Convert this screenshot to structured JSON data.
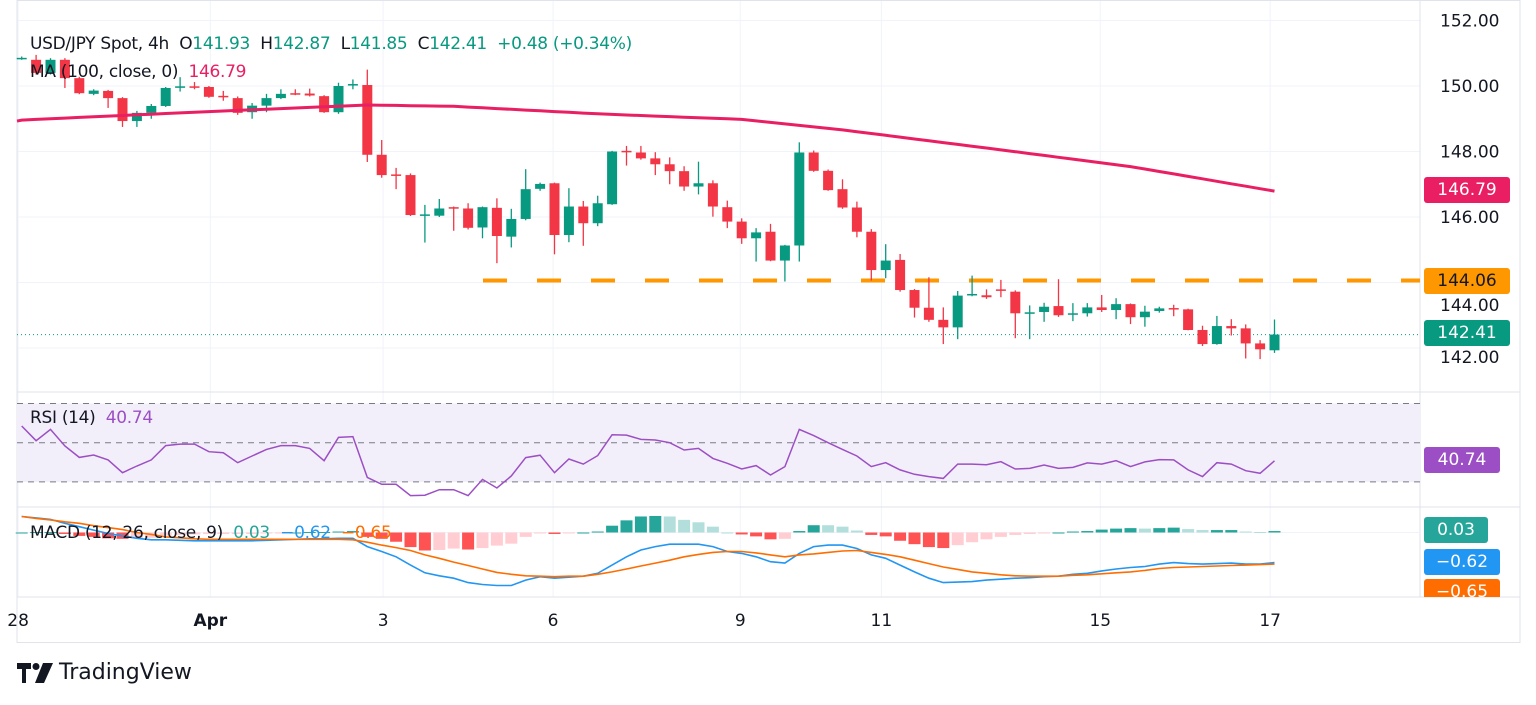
{
  "header": {
    "symbol": "USD/JPY Spot, 4h",
    "o_label": "O",
    "o": "141.93",
    "h_label": "H",
    "h": "142.87",
    "l_label": "L",
    "l": "141.85",
    "c_label": "C",
    "c": "142.41",
    "change": "+0.48 (+0.34%)"
  },
  "ma_legend": {
    "label": "MA (100, close, 0)",
    "value": "146.79"
  },
  "rsi_legend": {
    "label": "RSI (14)",
    "value": "40.74"
  },
  "macd_legend": {
    "label": "MACD (12, 26, close, 9)",
    "hist": "0.03",
    "macd": "−0.62",
    "signal": "−0.65"
  },
  "badges": {
    "ma": "146.79",
    "level": "144.06",
    "last": "142.41",
    "rsi": "40.74",
    "hist": "0.03",
    "macd": "−0.62",
    "signal": "−0.65"
  },
  "logo": {
    "text": "TradingView"
  },
  "colors": {
    "up": "#089981",
    "down": "#f23645",
    "ma": "#e91e63",
    "level": "#ff9800",
    "rsi": "#9c4fc4",
    "macd": "#2196f3",
    "signal": "#ff6d00",
    "hist_up_strong": "#26a69a",
    "hist_up_weak": "#b2dfdb",
    "hist_dn_strong": "#ff5252",
    "hist_dn_weak": "#ffcdd2"
  },
  "chart_data": {
    "type": "candlestick",
    "title": "USD/JPY Spot, 4h",
    "price_axis": {
      "ticks": [
        "152.00",
        "150.00",
        "148.00",
        "146.00",
        "144.00",
        "142.00"
      ],
      "range": [
        141.2,
        152.3
      ]
    },
    "time_axis": [
      {
        "label": "28",
        "index": -0.25
      },
      {
        "label": "Apr",
        "index": 13.1
      },
      {
        "label": "3",
        "index": 25.1
      },
      {
        "label": "6",
        "index": 36.9
      },
      {
        "label": "9",
        "index": 49.9
      },
      {
        "label": "11",
        "index": 59.7
      },
      {
        "label": "15",
        "index": 74.9
      },
      {
        "label": "17",
        "index": 86.7
      }
    ],
    "horizontal_level": 144.06,
    "last_price": 142.41,
    "ohlc": [
      [
        150.84,
        150.9,
        150.8,
        150.86
      ],
      [
        150.8,
        150.95,
        150.35,
        150.4
      ],
      [
        150.4,
        150.85,
        150.35,
        150.8
      ],
      [
        150.8,
        150.85,
        149.94,
        150.24
      ],
      [
        150.24,
        150.28,
        149.75,
        149.78
      ],
      [
        149.76,
        149.9,
        149.72,
        149.86
      ],
      [
        149.85,
        149.88,
        149.33,
        149.63
      ],
      [
        149.63,
        149.66,
        148.75,
        148.93
      ],
      [
        148.93,
        149.24,
        148.75,
        149.18
      ],
      [
        149.18,
        149.45,
        149.0,
        149.39
      ],
      [
        149.39,
        149.97,
        149.36,
        149.94
      ],
      [
        149.95,
        150.27,
        149.83,
        149.99
      ],
      [
        149.99,
        150.12,
        149.9,
        149.96
      ],
      [
        149.97,
        150.0,
        149.64,
        149.67
      ],
      [
        149.7,
        149.85,
        149.55,
        149.68
      ],
      [
        149.63,
        149.68,
        149.12,
        149.18
      ],
      [
        149.2,
        149.48,
        149.0,
        149.4
      ],
      [
        149.4,
        149.76,
        149.2,
        149.63
      ],
      [
        149.63,
        149.9,
        149.6,
        149.76
      ],
      [
        149.78,
        149.9,
        149.72,
        149.76
      ],
      [
        149.77,
        149.92,
        149.68,
        149.71
      ],
      [
        149.69,
        149.72,
        149.18,
        149.2
      ],
      [
        149.2,
        150.1,
        149.15,
        150.0
      ],
      [
        150.04,
        150.2,
        149.9,
        150.06
      ],
      [
        150.03,
        150.5,
        147.68,
        147.9
      ],
      [
        147.9,
        148.35,
        147.2,
        147.28
      ],
      [
        147.3,
        147.5,
        146.85,
        147.27
      ],
      [
        147.28,
        147.33,
        146.03,
        146.06
      ],
      [
        146.06,
        146.37,
        145.22,
        146.08
      ],
      [
        146.04,
        146.55,
        146.0,
        146.26
      ],
      [
        146.3,
        146.32,
        145.58,
        146.28
      ],
      [
        146.26,
        146.42,
        145.62,
        145.67
      ],
      [
        145.68,
        146.32,
        145.35,
        146.3
      ],
      [
        146.28,
        146.57,
        144.59,
        145.42
      ],
      [
        145.4,
        146.25,
        145.07,
        145.94
      ],
      [
        145.94,
        147.46,
        145.9,
        146.85
      ],
      [
        146.86,
        147.05,
        146.8,
        147.01
      ],
      [
        147.03,
        147.05,
        144.86,
        145.45
      ],
      [
        145.45,
        146.88,
        145.23,
        146.32
      ],
      [
        146.32,
        146.49,
        145.12,
        145.81
      ],
      [
        145.81,
        146.65,
        145.72,
        146.42
      ],
      [
        146.39,
        148.02,
        146.37,
        148.0
      ],
      [
        148.02,
        148.17,
        147.57,
        147.99
      ],
      [
        147.97,
        148.17,
        147.75,
        147.79
      ],
      [
        147.79,
        147.98,
        147.28,
        147.61
      ],
      [
        147.61,
        147.82,
        147.0,
        147.4
      ],
      [
        147.4,
        147.55,
        146.8,
        146.93
      ],
      [
        146.93,
        147.69,
        146.69,
        147.03
      ],
      [
        147.03,
        147.12,
        146.01,
        146.32
      ],
      [
        146.3,
        146.5,
        145.66,
        145.86
      ],
      [
        145.86,
        145.96,
        145.18,
        145.35
      ],
      [
        145.35,
        145.66,
        144.64,
        145.53
      ],
      [
        145.55,
        145.79,
        144.65,
        144.67
      ],
      [
        144.67,
        145.15,
        144.03,
        145.13
      ],
      [
        145.13,
        148.28,
        144.64,
        147.97
      ],
      [
        147.97,
        148.03,
        147.38,
        147.41
      ],
      [
        147.41,
        147.45,
        146.8,
        146.82
      ],
      [
        146.85,
        147.15,
        146.25,
        146.29
      ],
      [
        146.29,
        146.47,
        145.38,
        145.55
      ],
      [
        145.55,
        145.63,
        144.06,
        144.38
      ],
      [
        144.38,
        145.17,
        144.13,
        144.67
      ],
      [
        144.69,
        144.87,
        143.72,
        143.77
      ],
      [
        143.77,
        143.8,
        142.93,
        143.23
      ],
      [
        143.23,
        144.16,
        142.8,
        142.86
      ],
      [
        142.86,
        143.24,
        142.12,
        142.63
      ],
      [
        142.63,
        143.74,
        142.27,
        143.6
      ],
      [
        143.62,
        144.21,
        143.58,
        143.65
      ],
      [
        143.61,
        143.79,
        143.5,
        143.55
      ],
      [
        143.79,
        144.08,
        143.55,
        143.76
      ],
      [
        143.72,
        143.76,
        142.3,
        143.06
      ],
      [
        143.06,
        143.3,
        142.27,
        143.09
      ],
      [
        143.1,
        143.38,
        142.8,
        143.26
      ],
      [
        143.28,
        144.1,
        142.95,
        143.0
      ],
      [
        143.03,
        143.37,
        142.82,
        143.06
      ],
      [
        143.06,
        143.37,
        142.96,
        143.24
      ],
      [
        143.24,
        143.62,
        143.1,
        143.16
      ],
      [
        143.16,
        143.52,
        142.88,
        143.34
      ],
      [
        143.34,
        143.36,
        142.73,
        142.94
      ],
      [
        142.94,
        143.29,
        142.65,
        143.11
      ],
      [
        143.13,
        143.26,
        143.08,
        143.21
      ],
      [
        143.22,
        143.32,
        142.97,
        143.2
      ],
      [
        143.18,
        143.2,
        142.54,
        142.55
      ],
      [
        142.55,
        142.68,
        142.06,
        142.12
      ],
      [
        142.12,
        142.98,
        142.1,
        142.67
      ],
      [
        142.67,
        142.88,
        142.38,
        142.6
      ],
      [
        142.6,
        142.72,
        141.68,
        142.14
      ],
      [
        142.14,
        142.24,
        141.66,
        141.96
      ],
      [
        141.93,
        142.87,
        141.85,
        142.41
      ]
    ],
    "ma100": [
      [
        0,
        148.96
      ],
      [
        12,
        149.2
      ],
      [
        24,
        149.42
      ],
      [
        30,
        149.38
      ],
      [
        40,
        149.15
      ],
      [
        50,
        148.98
      ],
      [
        57,
        148.66
      ],
      [
        68,
        148.05
      ],
      [
        77,
        147.54
      ],
      [
        87,
        146.79
      ]
    ],
    "rsi": {
      "levels": [
        70,
        50,
        30
      ],
      "range": [
        10,
        90
      ],
      "values": [
        58.5,
        51.0,
        56.8,
        48.3,
        42.5,
        43.7,
        41.2,
        34.7,
        38.1,
        41.2,
        48.5,
        49.3,
        49.3,
        45.4,
        44.9,
        39.8,
        43.2,
        46.6,
        48.5,
        48.5,
        47.1,
        40.8,
        52.7,
        53.1,
        32.3,
        28.8,
        28.8,
        23.0,
        23.2,
        26.0,
        26.0,
        23.0,
        31.3,
        26.9,
        33.0,
        42.4,
        43.6,
        34.7,
        41.7,
        39.1,
        43.4,
        54.1,
        53.9,
        51.7,
        51.4,
        50.0,
        46.3,
        47.1,
        42.0,
        39.5,
        36.6,
        38.3,
        33.5,
        37.8,
        56.8,
        53.6,
        50.0,
        46.6,
        43.2,
        37.8,
        39.8,
        36.1,
        33.9,
        32.7,
        31.8,
        39.1,
        39.1,
        38.8,
        40.3,
        36.6,
        36.9,
        38.6,
        36.9,
        37.4,
        39.7,
        39.1,
        40.8,
        37.8,
        40.2,
        41.4,
        41.2,
        36.1,
        32.7,
        39.8,
        39.1,
        35.7,
        34.4,
        40.74
      ]
    },
    "macd": {
      "macd": [
        0.33,
        0.3,
        0.27,
        0.19,
        0.12,
        0.05,
        -0.02,
        -0.07,
        -0.12,
        -0.15,
        -0.15,
        -0.16,
        -0.17,
        -0.17,
        -0.17,
        -0.17,
        -0.17,
        -0.16,
        -0.15,
        -0.14,
        -0.13,
        -0.13,
        -0.12,
        -0.12,
        -0.29,
        -0.39,
        -0.5,
        -0.67,
        -0.83,
        -0.89,
        -0.94,
        -1.03,
        -1.07,
        -1.09,
        -1.09,
        -0.98,
        -0.91,
        -0.94,
        -0.92,
        -0.9,
        -0.84,
        -0.67,
        -0.5,
        -0.36,
        -0.29,
        -0.24,
        -0.24,
        -0.24,
        -0.29,
        -0.39,
        -0.43,
        -0.5,
        -0.6,
        -0.63,
        -0.43,
        -0.29,
        -0.26,
        -0.26,
        -0.33,
        -0.46,
        -0.53,
        -0.67,
        -0.81,
        -0.94,
        -1.03,
        -1.02,
        -1.01,
        -0.98,
        -0.96,
        -0.94,
        -0.93,
        -0.91,
        -0.9,
        -0.86,
        -0.84,
        -0.79,
        -0.75,
        -0.72,
        -0.7,
        -0.65,
        -0.62,
        -0.64,
        -0.65,
        -0.64,
        -0.63,
        -0.65,
        -0.65,
        -0.62
      ],
      "signal": [
        0.33,
        0.29,
        0.26,
        0.22,
        0.19,
        0.14,
        0.1,
        0.06,
        0.0,
        -0.04,
        -0.09,
        -0.11,
        -0.13,
        -0.14,
        -0.14,
        -0.14,
        -0.14,
        -0.14,
        -0.14,
        -0.14,
        -0.14,
        -0.14,
        -0.14,
        -0.15,
        -0.2,
        -0.26,
        -0.31,
        -0.37,
        -0.46,
        -0.53,
        -0.61,
        -0.68,
        -0.75,
        -0.82,
        -0.86,
        -0.89,
        -0.9,
        -0.91,
        -0.9,
        -0.9,
        -0.86,
        -0.81,
        -0.75,
        -0.69,
        -0.63,
        -0.57,
        -0.5,
        -0.45,
        -0.41,
        -0.39,
        -0.39,
        -0.42,
        -0.46,
        -0.5,
        -0.46,
        -0.44,
        -0.41,
        -0.38,
        -0.37,
        -0.41,
        -0.45,
        -0.5,
        -0.57,
        -0.64,
        -0.71,
        -0.76,
        -0.81,
        -0.84,
        -0.87,
        -0.89,
        -0.9,
        -0.9,
        -0.9,
        -0.88,
        -0.87,
        -0.85,
        -0.83,
        -0.81,
        -0.78,
        -0.74,
        -0.72,
        -0.71,
        -0.7,
        -0.69,
        -0.68,
        -0.67,
        -0.66,
        -0.65
      ]
    }
  }
}
